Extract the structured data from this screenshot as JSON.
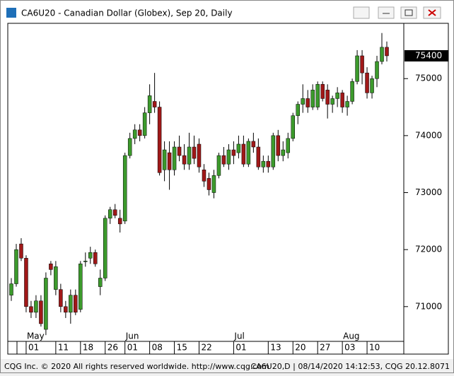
{
  "window_title": "CA6U20 - Canadian Dollar (Globex), Sep 20, Daily",
  "chart_data": {
    "type": "candlestick",
    "months": [
      null,
      null,
      null,
      "May",
      null,
      null,
      null,
      null,
      null,
      null,
      null,
      null,
      null,
      null,
      null,
      null,
      null,
      null,
      null,
      null,
      null,
      null,
      null,
      "Jun",
      null,
      null,
      null,
      null,
      null,
      null,
      null,
      null,
      null,
      null,
      null,
      null,
      null,
      null,
      null,
      null,
      null,
      null,
      null,
      null,
      null,
      "Jul",
      null,
      null,
      null,
      null,
      null,
      null,
      null,
      null,
      null,
      null,
      null,
      null,
      null,
      null,
      null,
      null,
      null,
      null,
      null,
      null,
      null,
      "Aug",
      null,
      null,
      null,
      null,
      null,
      null,
      null,
      null,
      null
    ],
    "categories": [
      null,
      null,
      null,
      "01",
      null,
      null,
      null,
      null,
      null,
      "11",
      null,
      null,
      null,
      null,
      "18",
      null,
      null,
      null,
      null,
      "26",
      null,
      null,
      null,
      "01",
      null,
      null,
      null,
      null,
      "08",
      null,
      null,
      null,
      null,
      "15",
      null,
      null,
      null,
      null,
      "22",
      null,
      null,
      null,
      null,
      null,
      null,
      "01",
      null,
      null,
      null,
      null,
      null,
      null,
      "13",
      null,
      null,
      null,
      null,
      "20",
      null,
      null,
      null,
      null,
      "27",
      null,
      null,
      null,
      null,
      "03",
      null,
      null,
      null,
      null,
      "10",
      null,
      null,
      null,
      null
    ],
    "ohlc": [
      [
        71200,
        71500,
        71100,
        71400
      ],
      [
        71400,
        72100,
        71350,
        72000
      ],
      [
        72100,
        72200,
        71800,
        71850
      ],
      [
        71850,
        71900,
        70900,
        71000
      ],
      [
        71000,
        71100,
        70800,
        70900
      ],
      [
        70900,
        71200,
        70800,
        71100
      ],
      [
        71100,
        71200,
        70650,
        70700
      ],
      [
        70600,
        71600,
        70500,
        71500
      ],
      [
        71750,
        71800,
        71550,
        71650
      ],
      [
        71300,
        71800,
        71200,
        71700
      ],
      [
        71300,
        71400,
        70900,
        71000
      ],
      [
        71000,
        71100,
        70800,
        70900
      ],
      [
        70900,
        71300,
        70700,
        71200
      ],
      [
        71200,
        71300,
        70850,
        70900
      ],
      [
        70950,
        71800,
        70900,
        71750
      ],
      [
        71800,
        71950,
        71700,
        71800
      ],
      [
        71850,
        72050,
        71750,
        71950
      ],
      [
        71950,
        72000,
        71700,
        71750
      ],
      [
        71350,
        71650,
        71200,
        71500
      ],
      [
        71500,
        72600,
        71450,
        72550
      ],
      [
        72550,
        72750,
        72450,
        72700
      ],
      [
        72700,
        72800,
        72550,
        72600
      ],
      [
        72550,
        72700,
        72300,
        72450
      ],
      [
        72500,
        73700,
        72450,
        73650
      ],
      [
        73650,
        74050,
        73600,
        73950
      ],
      [
        73950,
        74200,
        73850,
        74100
      ],
      [
        74100,
        74200,
        73900,
        74000
      ],
      [
        74000,
        74500,
        73950,
        74400
      ],
      [
        74400,
        74900,
        74200,
        74700
      ],
      [
        74600,
        75100,
        74400,
        74500
      ],
      [
        74500,
        74600,
        73300,
        73350
      ],
      [
        73400,
        73900,
        73200,
        73750
      ],
      [
        73700,
        73900,
        73050,
        73400
      ],
      [
        73400,
        73900,
        73300,
        73800
      ],
      [
        73800,
        74000,
        73550,
        73650
      ],
      [
        73650,
        73850,
        73400,
        73500
      ],
      [
        73500,
        74050,
        73400,
        73800
      ],
      [
        73800,
        74000,
        73500,
        73600
      ],
      [
        73850,
        73950,
        73350,
        73450
      ],
      [
        73400,
        73500,
        73100,
        73200
      ],
      [
        73250,
        73350,
        72950,
        73050
      ],
      [
        73000,
        73400,
        72900,
        73300
      ],
      [
        73300,
        73700,
        73250,
        73650
      ],
      [
        73650,
        73800,
        73450,
        73500
      ],
      [
        73500,
        73850,
        73400,
        73750
      ],
      [
        73750,
        73900,
        73500,
        73650
      ],
      [
        73700,
        74000,
        73600,
        73850
      ],
      [
        73850,
        74000,
        73450,
        73500
      ],
      [
        73500,
        73950,
        73450,
        73900
      ],
      [
        73900,
        74050,
        73700,
        73800
      ],
      [
        73800,
        73950,
        73400,
        73450
      ],
      [
        73450,
        73650,
        73350,
        73550
      ],
      [
        73550,
        73650,
        73350,
        73450
      ],
      [
        73450,
        74050,
        73400,
        74000
      ],
      [
        74000,
        74100,
        73550,
        73650
      ],
      [
        73650,
        73900,
        73550,
        73750
      ],
      [
        73700,
        74050,
        73600,
        73950
      ],
      [
        73950,
        74400,
        73900,
        74350
      ],
      [
        74350,
        74600,
        74200,
        74550
      ],
      [
        74550,
        74900,
        74400,
        74650
      ],
      [
        74650,
        74800,
        74400,
        74500
      ],
      [
        74500,
        74900,
        74450,
        74800
      ],
      [
        74500,
        74950,
        74450,
        74900
      ],
      [
        74900,
        74950,
        74600,
        74650
      ],
      [
        74800,
        74900,
        74300,
        74550
      ],
      [
        74550,
        74700,
        74400,
        74650
      ],
      [
        74650,
        74850,
        74500,
        74750
      ],
      [
        74750,
        74800,
        74400,
        74500
      ],
      [
        74500,
        74700,
        74350,
        74600
      ],
      [
        74600,
        75000,
        74550,
        74950
      ],
      [
        74950,
        75500,
        74900,
        75400
      ],
      [
        75400,
        75500,
        74900,
        75100
      ],
      [
        75100,
        75200,
        74650,
        74750
      ],
      [
        74750,
        75050,
        74650,
        75000
      ],
      [
        75000,
        75400,
        74850,
        75300
      ],
      [
        75300,
        75800,
        75250,
        75550
      ],
      [
        75550,
        75650,
        75300,
        75400
      ]
    ],
    "up_color": "#3c9a2c",
    "down_color": "#a01818",
    "ylim": [
      70390,
      75970
    ],
    "yticks": [
      71000,
      72000,
      73000,
      74000,
      75000
    ],
    "last_price": 75400
  },
  "footer": {
    "left": "CQG Inc. © 2020 All rights reserved worldwide. http://www.cqg.com",
    "right": "CA6U20,D | 08/14/2020 14:12:53, CQG 20.12.8071"
  }
}
